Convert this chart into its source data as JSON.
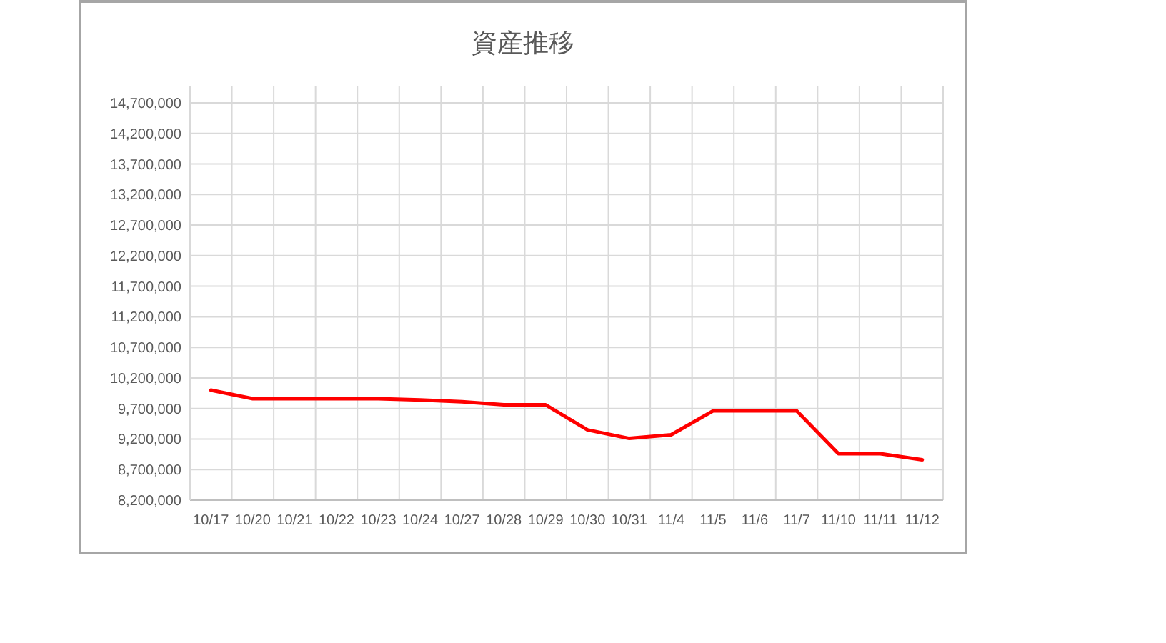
{
  "chart_data": {
    "type": "line",
    "title": "資産推移",
    "categories": [
      "10/17",
      "10/20",
      "10/21",
      "10/22",
      "10/23",
      "10/24",
      "10/27",
      "10/28",
      "10/29",
      "10/30",
      "10/31",
      "11/4",
      "11/5",
      "11/6",
      "11/7",
      "11/10",
      "11/11",
      "11/12"
    ],
    "series": [
      {
        "color": "#ff0000",
        "values": [
          10000000,
          9860000,
          9860000,
          9860000,
          9860000,
          9840000,
          9810000,
          9760000,
          9760000,
          9350000,
          9210000,
          9270000,
          9660000,
          9660000,
          9660000,
          8960000,
          8960000,
          8860000
        ]
      }
    ],
    "ylim": [
      8200000,
      14700000
    ],
    "yticks": [
      {
        "value": 8200000,
        "label": "8,200,000"
      },
      {
        "value": 8700000,
        "label": "8,700,000"
      },
      {
        "value": 9200000,
        "label": "9,200,000"
      },
      {
        "value": 9700000,
        "label": "9,700,000"
      },
      {
        "value": 10200000,
        "label": "10,200,000"
      },
      {
        "value": 10700000,
        "label": "10,700,000"
      },
      {
        "value": 11200000,
        "label": "11,200,000"
      },
      {
        "value": 11700000,
        "label": "11,700,000"
      },
      {
        "value": 12200000,
        "label": "12,200,000"
      },
      {
        "value": 12700000,
        "label": "12,700,000"
      },
      {
        "value": 13200000,
        "label": "13,200,000"
      },
      {
        "value": 13700000,
        "label": "13,700,000"
      },
      {
        "value": 14200000,
        "label": "14,200,000"
      },
      {
        "value": 14700000,
        "label": "14,700,000"
      }
    ],
    "grid": true,
    "marker": "none",
    "line_style": "solid"
  }
}
